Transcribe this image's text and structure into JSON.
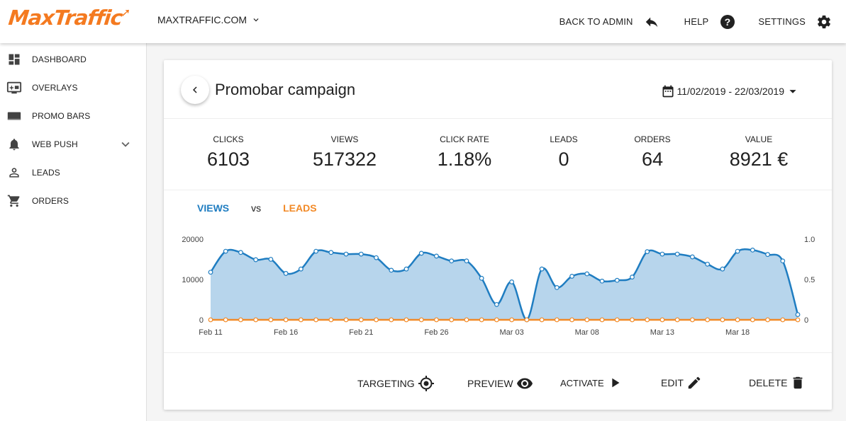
{
  "app": {
    "logo_text": "MaxTraffic",
    "domain": "MAXTRAFFIC.COM"
  },
  "topnav": {
    "back_to_admin": "BACK TO ADMIN",
    "help": "HELP",
    "settings": "SETTINGS"
  },
  "sidebar": {
    "items": [
      {
        "label": "DASHBOARD",
        "icon": "dashboard-icon"
      },
      {
        "label": "OVERLAYS",
        "icon": "overlay-screen-icon"
      },
      {
        "label": "PROMO BARS",
        "icon": "promo-bar-icon"
      },
      {
        "label": "WEB PUSH",
        "icon": "bell-icon"
      },
      {
        "label": "LEADS",
        "icon": "person-icon"
      },
      {
        "label": "ORDERS",
        "icon": "cart-icon"
      }
    ]
  },
  "campaign": {
    "title": "Promobar campaign",
    "date_range": "11/02/2019 - 22/03/2019"
  },
  "stats": [
    {
      "label": "CLICKS",
      "value": "6103"
    },
    {
      "label": "VIEWS",
      "value": "517322"
    },
    {
      "label": "CLICK RATE",
      "value": "1.18%"
    },
    {
      "label": "LEADS",
      "value": "0"
    },
    {
      "label": "ORDERS",
      "value": "64"
    },
    {
      "label": "VALUE",
      "value": "8921 €"
    }
  ],
  "legend": {
    "views": "VIEWS",
    "vs": "vs",
    "leads": "LEADS"
  },
  "actions": {
    "targeting": "TARGETING",
    "preview": "PREVIEW",
    "activate": "ACTIVATE",
    "edit": "EDIT",
    "delete": "DELETE"
  },
  "colors": {
    "brand": "#f47a20",
    "views": "#1f7dc1",
    "views_fill": "#b7d5ec",
    "leads": "#f28a27"
  },
  "chart_data": {
    "type": "area",
    "title": "",
    "x_ticks": [
      "Feb 11",
      "Feb 16",
      "Feb 21",
      "Feb 26",
      "Mar 03",
      "Mar 08",
      "Mar 13",
      "Mar 18"
    ],
    "y_left": {
      "ticks": [
        "20000",
        "10000",
        "0"
      ],
      "range": [
        0,
        20000
      ]
    },
    "y_right": {
      "ticks": [
        "1.0",
        "0.5",
        "0"
      ],
      "range": [
        0,
        1
      ]
    },
    "series": [
      {
        "name": "VIEWS",
        "axis": "left",
        "values": [
          11800,
          17000,
          16700,
          14900,
          15000,
          11500,
          12600,
          17000,
          16700,
          16300,
          16300,
          15400,
          12300,
          12600,
          16500,
          15800,
          14600,
          14600,
          10300,
          3800,
          9400,
          0,
          12600,
          8000,
          10800,
          11400,
          9600,
          9800,
          10600,
          16900,
          16300,
          16300,
          15600,
          13800,
          12600,
          17000,
          17300,
          16200,
          14600,
          1300
        ]
      },
      {
        "name": "LEADS",
        "axis": "right",
        "values": [
          0,
          0,
          0,
          0,
          0,
          0,
          0,
          0,
          0,
          0,
          0,
          0,
          0,
          0,
          0,
          0,
          0,
          0,
          0,
          0,
          0,
          0,
          0,
          0,
          0,
          0,
          0,
          0,
          0,
          0,
          0,
          0,
          0,
          0,
          0,
          0,
          0,
          0,
          0,
          0
        ]
      }
    ]
  }
}
